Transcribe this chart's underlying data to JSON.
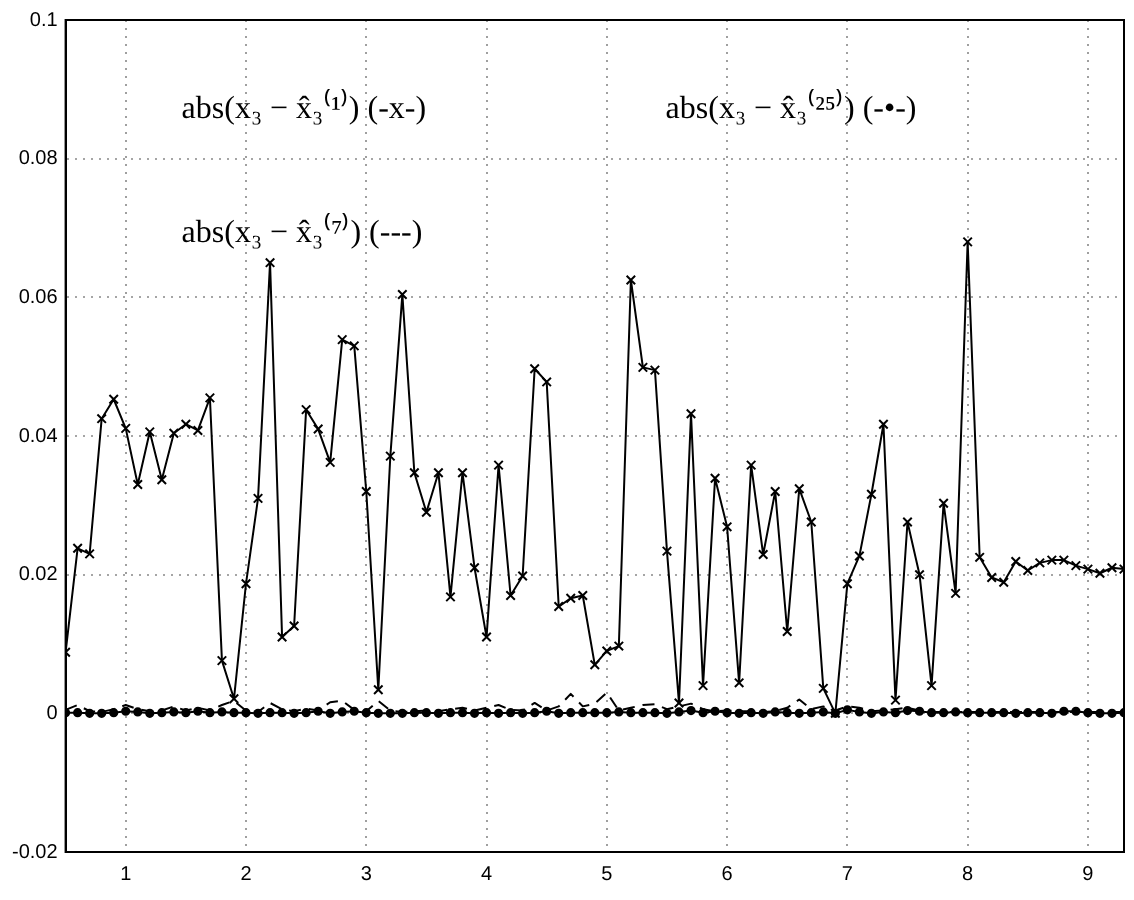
{
  "chart_data": {
    "type": "line",
    "x": [
      0.5,
      0.6,
      0.7,
      0.8,
      0.9,
      1.0,
      1.1,
      1.2,
      1.3,
      1.4,
      1.5,
      1.6,
      1.7,
      1.8,
      1.9,
      2.0,
      2.1,
      2.2,
      2.3,
      2.4,
      2.5,
      2.6,
      2.7,
      2.8,
      2.9,
      3.0,
      3.1,
      3.2,
      3.3,
      3.4,
      3.5,
      3.6,
      3.7,
      3.8,
      3.9,
      4.0,
      4.1,
      4.2,
      4.3,
      4.4,
      4.5,
      4.6,
      4.7,
      4.8,
      4.9,
      5.0,
      5.1,
      5.2,
      5.3,
      5.4,
      5.5,
      5.6,
      5.7,
      5.8,
      5.9,
      6.0,
      6.1,
      6.2,
      6.3,
      6.4,
      6.5,
      6.6,
      6.7,
      6.8,
      6.9,
      7.0,
      7.1,
      7.2,
      7.3,
      7.4,
      7.5,
      7.6,
      7.7,
      7.8,
      7.9,
      8.0,
      8.1,
      8.2,
      8.3,
      8.4,
      8.5,
      8.6,
      8.7,
      8.8,
      8.9,
      9.0,
      9.1,
      9.2,
      9.3
    ],
    "series": [
      {
        "color": "#000000",
        "marker": "cross",
        "line_style": "solid",
        "values": [
          0.0088,
          0.0238,
          0.023,
          0.0425,
          0.0453,
          0.0411,
          0.033,
          0.0406,
          0.0337,
          0.0404,
          0.0417,
          0.0408,
          0.0455,
          0.0076,
          0.0021,
          0.0187,
          0.031,
          0.065,
          0.011,
          0.0126,
          0.0438,
          0.041,
          0.0362,
          0.0539,
          0.053,
          0.032,
          0.0034,
          0.0371,
          0.0604,
          0.0347,
          0.029,
          0.0347,
          0.0168,
          0.0347,
          0.021,
          0.011,
          0.0358,
          0.017,
          0.0198,
          0.0497,
          0.0478,
          0.0154,
          0.0166,
          0.017,
          0.007,
          0.009,
          0.0097,
          0.0625,
          0.0499,
          0.0495,
          0.0234,
          0.0015,
          0.0432,
          0.004,
          0.0339,
          0.0269,
          0.0044,
          0.0358,
          0.0229,
          0.032,
          0.0118,
          0.0324,
          0.0276,
          0.0036,
          0.0,
          0.0187,
          0.0227,
          0.0316,
          0.0417,
          0.0019,
          0.0276,
          0.02,
          0.004,
          0.0303,
          0.0173,
          0.068,
          0.0225,
          0.0196,
          0.0189,
          0.0219,
          0.0206,
          0.0217,
          0.0221,
          0.0221,
          0.0213,
          0.0208,
          0.0202,
          0.021,
          0.0208
        ]
      },
      {
        "color": "#000000",
        "marker": "circle",
        "line_style": "solid",
        "values": [
          0.0001,
          0.0001,
          0.0,
          0.0,
          0.0001,
          0.0003,
          0.0002,
          0.0,
          0.0001,
          0.0002,
          0.0001,
          0.0003,
          0.0001,
          0.0002,
          0.0001,
          0.0001,
          0.0,
          0.0001,
          0.0001,
          0.0,
          0.0001,
          0.0003,
          0.0,
          0.0002,
          0.0003,
          0.0001,
          0.0,
          0.0,
          0.0,
          0.0001,
          0.0001,
          0.0,
          0.0001,
          0.0001,
          0.0,
          0.0001,
          0.0,
          0.0001,
          0.0,
          0.0001,
          0.0003,
          0.0,
          0.0001,
          0.0001,
          0.0001,
          0.0001,
          0.0002,
          0.0001,
          0.0001,
          0.0001,
          0.0,
          0.0002,
          0.0004,
          0.0001,
          0.0003,
          0.0001,
          0.0,
          0.0001,
          0.0,
          0.0002,
          0.0001,
          0.0,
          0.0001,
          0.0002,
          0.0,
          0.0005,
          0.0002,
          0.0,
          0.0002,
          0.0001,
          0.0004,
          0.0003,
          0.0001,
          0.0001,
          0.0002,
          0.0001,
          0.0001,
          0.0001,
          0.0001,
          0.0,
          0.0001,
          0.0001,
          0.0,
          0.0003,
          0.0003,
          0.0001,
          0.0,
          0.0,
          0.0001
        ]
      },
      {
        "color": "#000000",
        "marker": "none",
        "line_style": "dashed",
        "values": [
          0.0005,
          0.0012,
          0.0003,
          0.0002,
          0.0006,
          0.0012,
          0.0006,
          0.0003,
          0.0004,
          0.001,
          0.0004,
          0.0008,
          0.0004,
          0.0012,
          0.0018,
          0.0004,
          0.0002,
          0.0015,
          0.0006,
          0.0003,
          0.0007,
          0.0004,
          0.0016,
          0.0018,
          0.0005,
          0.0003,
          0.0018,
          0.0004,
          0.0002,
          0.0003,
          0.0004,
          0.0003,
          0.0006,
          0.0008,
          0.0004,
          0.0008,
          0.0012,
          0.0005,
          0.0004,
          0.0015,
          0.0004,
          0.001,
          0.0028,
          0.001,
          0.0014,
          0.003,
          0.0004,
          0.0008,
          0.0012,
          0.0013,
          0.0006,
          0.001,
          0.0014,
          0.0006,
          0.0003,
          0.0004,
          0.0003,
          0.0003,
          0.0002,
          0.0003,
          0.0008,
          0.002,
          0.0006,
          0.001,
          0.0004,
          0.001,
          0.0008,
          0.0003,
          0.0004,
          0.0006,
          0.0008,
          0.0004,
          0.0002,
          0.0002,
          0.0002,
          0.0002,
          0.0002,
          0.0002,
          0.0002,
          0.0002,
          0.0002,
          0.0002,
          0.0002,
          0.0002,
          0.0002,
          0.0002,
          0.0002,
          0.0002,
          0.0002
        ]
      }
    ],
    "xlim": [
      0.5,
      9.3
    ],
    "xticks": [
      1,
      2,
      3,
      4,
      5,
      6,
      7,
      8,
      9
    ],
    "ylim": [
      -0.02,
      0.1
    ],
    "yticks": [
      -0.02,
      0,
      0.02,
      0.04,
      0.06,
      0.08,
      0.1
    ],
    "grid": true,
    "annotations": [
      "abs(x₃ − x̂₃⁽¹⁾) (-x-)",
      "abs(x₃ − x̂₃⁽²⁵⁾) (-•-)",
      "abs(x₃ − x̂₃⁽⁷⁾) (---)"
    ]
  }
}
